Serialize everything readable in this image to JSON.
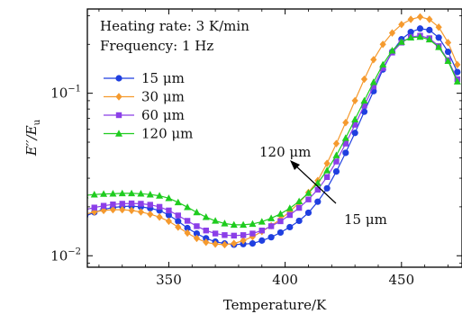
{
  "chart_data": {
    "type": "line",
    "xlabel": "Temperature/K",
    "ylabel": "E′′/E",
    "ylabel_sub": "u",
    "xlim": [
      315,
      476
    ],
    "ylim": [
      0.0085,
      0.33
    ],
    "yscale": "log",
    "grid": false,
    "legend_position": "upper-left",
    "x_ticks": [
      {
        "value": 350,
        "label": "350"
      },
      {
        "value": 400,
        "label": "400"
      },
      {
        "value": 450,
        "label": "450"
      }
    ],
    "y_ticks": [
      {
        "value": 0.01,
        "base": "10",
        "exp": "−2"
      },
      {
        "value": 0.1,
        "base": "10",
        "exp": "−1"
      }
    ],
    "annotations": {
      "line1": "Heating rate: 3 K/min",
      "line2": "Frequency: 1 Hz",
      "arrow_top": "120 μm",
      "arrow_bottom": "15 μm"
    },
    "series": [
      {
        "name": "15 μm",
        "color": "#1f3fe0",
        "marker": "circle",
        "x": [
          314,
          318,
          322,
          326,
          330,
          334,
          338,
          342,
          346,
          350,
          354,
          358,
          362,
          366,
          370,
          374,
          378,
          382,
          386,
          390,
          394,
          398,
          402,
          406,
          410,
          414,
          418,
          422,
          426,
          430,
          434,
          438,
          442,
          446,
          450,
          454,
          458,
          462,
          466,
          470,
          474
        ],
        "y": [
          0.0175,
          0.0185,
          0.0193,
          0.0198,
          0.0201,
          0.0202,
          0.02,
          0.0196,
          0.019,
          0.0178,
          0.0163,
          0.0148,
          0.0137,
          0.0128,
          0.0122,
          0.0119,
          0.0117,
          0.0118,
          0.0119,
          0.0124,
          0.013,
          0.0139,
          0.015,
          0.0164,
          0.0184,
          0.0215,
          0.026,
          0.033,
          0.043,
          0.057,
          0.077,
          0.103,
          0.14,
          0.18,
          0.215,
          0.238,
          0.25,
          0.245,
          0.22,
          0.18,
          0.135
        ]
      },
      {
        "name": "30 μm",
        "color": "#f59a2e",
        "marker": "diamond",
        "x": [
          314,
          318,
          322,
          326,
          330,
          334,
          338,
          342,
          346,
          350,
          354,
          358,
          362,
          366,
          370,
          374,
          378,
          382,
          386,
          390,
          394,
          398,
          402,
          406,
          410,
          414,
          418,
          422,
          426,
          430,
          434,
          438,
          442,
          446,
          450,
          454,
          458,
          462,
          466,
          470,
          474
        ],
        "y": [
          0.018,
          0.0186,
          0.019,
          0.0192,
          0.0192,
          0.019,
          0.0186,
          0.018,
          0.0173,
          0.0163,
          0.015,
          0.0138,
          0.0128,
          0.0121,
          0.0118,
          0.0117,
          0.0119,
          0.0124,
          0.0131,
          0.0141,
          0.0153,
          0.0168,
          0.0187,
          0.0212,
          0.0245,
          0.029,
          0.037,
          0.049,
          0.066,
          0.09,
          0.122,
          0.161,
          0.2,
          0.235,
          0.265,
          0.285,
          0.295,
          0.285,
          0.255,
          0.205,
          0.15
        ]
      },
      {
        "name": "60 μm",
        "color": "#8b3fe8",
        "marker": "square",
        "x": [
          314,
          318,
          322,
          326,
          330,
          334,
          338,
          342,
          346,
          350,
          354,
          358,
          362,
          366,
          370,
          374,
          378,
          382,
          386,
          390,
          394,
          398,
          402,
          406,
          410,
          414,
          418,
          422,
          426,
          430,
          434,
          438,
          442,
          446,
          450,
          454,
          458,
          462,
          466,
          470,
          474
        ],
        "y": [
          0.0192,
          0.0198,
          0.0203,
          0.0207,
          0.0209,
          0.021,
          0.0209,
          0.0206,
          0.02,
          0.019,
          0.0177,
          0.0164,
          0.0152,
          0.0143,
          0.0137,
          0.0134,
          0.0133,
          0.0134,
          0.0137,
          0.0143,
          0.0152,
          0.0163,
          0.0178,
          0.0197,
          0.0222,
          0.0255,
          0.0305,
          0.038,
          0.049,
          0.064,
          0.084,
          0.11,
          0.143,
          0.178,
          0.205,
          0.222,
          0.226,
          0.218,
          0.195,
          0.16,
          0.122
        ]
      },
      {
        "name": "120 μm",
        "color": "#1fcc1f",
        "marker": "triangle",
        "x": [
          314,
          318,
          322,
          326,
          330,
          334,
          338,
          342,
          346,
          350,
          354,
          358,
          362,
          366,
          370,
          374,
          378,
          382,
          386,
          390,
          394,
          398,
          402,
          406,
          410,
          414,
          418,
          422,
          426,
          430,
          434,
          438,
          442,
          446,
          450,
          454,
          458,
          462,
          466,
          470,
          474
        ],
        "y": [
          0.0235,
          0.0238,
          0.024,
          0.0241,
          0.0242,
          0.0242,
          0.0241,
          0.0238,
          0.0234,
          0.0226,
          0.0213,
          0.0199,
          0.0185,
          0.0173,
          0.0164,
          0.0158,
          0.0155,
          0.0155,
          0.0157,
          0.0162,
          0.017,
          0.0181,
          0.0196,
          0.0216,
          0.0243,
          0.028,
          0.0335,
          0.0415,
          0.053,
          0.069,
          0.09,
          0.117,
          0.15,
          0.183,
          0.207,
          0.22,
          0.222,
          0.214,
          0.192,
          0.158,
          0.118
        ]
      }
    ]
  }
}
